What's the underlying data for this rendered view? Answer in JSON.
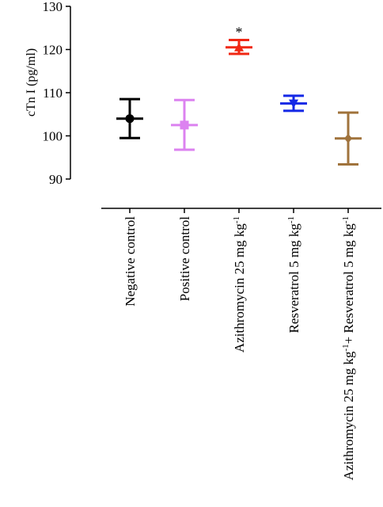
{
  "chart_data": {
    "type": "scatter",
    "title": "",
    "ylabel": "cTn I (pg/ml)",
    "xlabel": "",
    "ylim": [
      90,
      130
    ],
    "yticks": [
      90,
      100,
      110,
      120,
      130
    ],
    "grid": false,
    "legend": "none",
    "categories": [
      {
        "text": "Negative control",
        "sup": "",
        "tail": ""
      },
      {
        "text": "Positive control",
        "sup": "",
        "tail": ""
      },
      {
        "text": "Azithromycin 25 mg kg",
        "sup": "-1",
        "tail": ""
      },
      {
        "text": "Resveratrol 5 mg kg",
        "sup": "-1",
        "tail": ""
      },
      {
        "text": "Azithromycin 25 mg kg",
        "sup": "-1",
        "tail": "+ Resveratrol 5 mg kg",
        "sup2": "-1"
      }
    ],
    "series": [
      {
        "mean": 104.0,
        "lower": 99.5,
        "upper": 108.5,
        "color": "#000000",
        "marker": "circle",
        "annotation": ""
      },
      {
        "mean": 102.5,
        "lower": 96.8,
        "upper": 108.3,
        "color": "#dc82f0",
        "marker": "square",
        "annotation": ""
      },
      {
        "mean": 120.5,
        "lower": 119.0,
        "upper": 122.2,
        "color": "#f02814",
        "marker": "triangle-up",
        "annotation": "*"
      },
      {
        "mean": 107.5,
        "lower": 105.8,
        "upper": 109.3,
        "color": "#1428e6",
        "marker": "triangle-down",
        "annotation": ""
      },
      {
        "mean": 99.4,
        "lower": 93.4,
        "upper": 105.4,
        "color": "#a0733c",
        "marker": "diamond",
        "annotation": ""
      }
    ]
  }
}
